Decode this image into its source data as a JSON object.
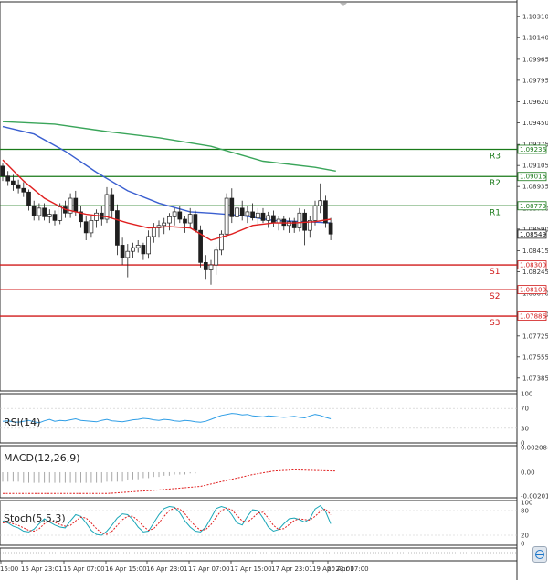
{
  "chart_data": {
    "type": "candlestick",
    "symbol_pair": "EURUSD",
    "price_axis": {
      "ticks": [
        "1.10310",
        "1.10140",
        "1.09965",
        "1.09795",
        "1.09620",
        "1.09450",
        "1.09275",
        "1.09105",
        "1.08935",
        "1.08760",
        "1.08590",
        "1.08415",
        "1.08245",
        "1.08070",
        "1.07900",
        "1.07725",
        "1.07555",
        "1.07385"
      ],
      "range": [
        1.0728,
        1.1043
      ]
    },
    "time_axis": {
      "labels": [
        "15:00",
        "15 Apr 23:01",
        "16 Apr 07:00",
        "16 Apr 15:00",
        "16 Apr 23:01",
        "17 Apr 07:00",
        "17 Apr 15:00",
        "17 Apr 23:01",
        "19 Apr 23:01",
        "20 Apr 07:00"
      ]
    },
    "current_price": "1.08549",
    "levels": [
      {
        "name": "R3",
        "value": 1.09236,
        "tag": "1.09236",
        "color": "#1a7a1a"
      },
      {
        "name": "R2",
        "value": 1.09016,
        "tag": "1.09016",
        "color": "#1a7a1a"
      },
      {
        "name": "R1",
        "value": 1.08779,
        "tag": "1.08779",
        "color": "#1a7a1a"
      },
      {
        "name": "S1",
        "value": 1.083,
        "tag": "1.08300",
        "color": "#d11a1a"
      },
      {
        "name": "S2",
        "value": 1.081,
        "tag": "1.08100",
        "color": "#d11a1a"
      },
      {
        "name": "S3",
        "value": 1.07886,
        "tag": "1.07886",
        "color": "#d11a1a"
      }
    ],
    "candles": [
      [
        1.091,
        1.0912,
        1.0898,
        1.0902
      ],
      [
        1.0902,
        1.0906,
        1.0894,
        1.0898
      ],
      [
        1.0898,
        1.0903,
        1.089,
        1.0895
      ],
      [
        1.0895,
        1.0899,
        1.0888,
        1.0892
      ],
      [
        1.0892,
        1.0897,
        1.0885,
        1.0889
      ],
      [
        1.0889,
        1.0891,
        1.0874,
        1.0878
      ],
      [
        1.0878,
        1.0882,
        1.0866,
        1.087
      ],
      [
        1.087,
        1.088,
        1.0866,
        1.0876
      ],
      [
        1.0876,
        1.088,
        1.0866,
        1.0869
      ],
      [
        1.0869,
        1.0875,
        1.0864,
        1.0871
      ],
      [
        1.0871,
        1.0874,
        1.0862,
        1.0866
      ],
      [
        1.0866,
        1.088,
        1.0863,
        1.0877
      ],
      [
        1.0877,
        1.0882,
        1.0868,
        1.0872
      ],
      [
        1.0872,
        1.0888,
        1.0868,
        1.0884
      ],
      [
        1.0884,
        1.089,
        1.087,
        1.0873
      ],
      [
        1.0873,
        1.0878,
        1.086,
        1.0865
      ],
      [
        1.0865,
        1.087,
        1.085,
        1.0856
      ],
      [
        1.0856,
        1.087,
        1.0852,
        1.0866
      ],
      [
        1.0866,
        1.0875,
        1.086,
        1.0872
      ],
      [
        1.0872,
        1.0878,
        1.0862,
        1.0867
      ],
      [
        1.0867,
        1.0893,
        1.0864,
        1.0887
      ],
      [
        1.0887,
        1.0892,
        1.0868,
        1.0874
      ],
      [
        1.0874,
        1.0879,
        1.0838,
        1.0846
      ],
      [
        1.0846,
        1.0852,
        1.083,
        1.0836
      ],
      [
        1.0836,
        1.0847,
        1.082,
        1.0841
      ],
      [
        1.0841,
        1.0848,
        1.0836,
        1.0844
      ],
      [
        1.0844,
        1.085,
        1.084,
        1.0846
      ],
      [
        1.0846,
        1.0848,
        1.0834,
        1.0839
      ],
      [
        1.0839,
        1.0858,
        1.0835,
        1.0853
      ],
      [
        1.0853,
        1.0864,
        1.0848,
        1.086
      ],
      [
        1.086,
        1.0866,
        1.0852,
        1.0862
      ],
      [
        1.0862,
        1.0868,
        1.0855,
        1.0864
      ],
      [
        1.0864,
        1.0872,
        1.0858,
        1.0869
      ],
      [
        1.0869,
        1.0876,
        1.0862,
        1.0873
      ],
      [
        1.0873,
        1.0878,
        1.0864,
        1.0867
      ],
      [
        1.0867,
        1.087,
        1.0856,
        1.0864
      ],
      [
        1.0864,
        1.0876,
        1.086,
        1.0871
      ],
      [
        1.0871,
        1.0874,
        1.0856,
        1.0858
      ],
      [
        1.0858,
        1.0862,
        1.0828,
        1.0832
      ],
      [
        1.0832,
        1.0838,
        1.0818,
        1.0826
      ],
      [
        1.0826,
        1.0834,
        1.0814,
        1.083
      ],
      [
        1.083,
        1.0845,
        1.0822,
        1.0842
      ],
      [
        1.0842,
        1.0858,
        1.0838,
        1.0855
      ],
      [
        1.0855,
        1.0888,
        1.0852,
        1.0884
      ],
      [
        1.0884,
        1.0892,
        1.0864,
        1.0869
      ],
      [
        1.0869,
        1.089,
        1.0862,
        1.0876
      ],
      [
        1.0876,
        1.0882,
        1.0866,
        1.087
      ],
      [
        1.087,
        1.0878,
        1.0864,
        1.0873
      ],
      [
        1.0873,
        1.088,
        1.0866,
        1.0868
      ],
      [
        1.0868,
        1.0876,
        1.0863,
        1.0872
      ],
      [
        1.0872,
        1.0876,
        1.0864,
        1.0866
      ],
      [
        1.0866,
        1.0873,
        1.086,
        1.087
      ],
      [
        1.087,
        1.0874,
        1.0861,
        1.0864
      ],
      [
        1.0864,
        1.087,
        1.0858,
        1.0867
      ],
      [
        1.0867,
        1.087,
        1.0858,
        1.0862
      ],
      [
        1.0862,
        1.0868,
        1.0856,
        1.0865
      ],
      [
        1.0865,
        1.0868,
        1.0856,
        1.086
      ],
      [
        1.086,
        1.0876,
        1.0857,
        1.0872
      ],
      [
        1.0872,
        1.0875,
        1.0846,
        1.0858
      ],
      [
        1.0858,
        1.087,
        1.0852,
        1.0866
      ],
      [
        1.0866,
        1.0882,
        1.0862,
        1.0878
      ],
      [
        1.0878,
        1.0896,
        1.0872,
        1.0882
      ],
      [
        1.0882,
        1.0886,
        1.086,
        1.0864
      ],
      [
        1.0864,
        1.0868,
        1.085,
        1.0855
      ]
    ],
    "ma_slow_green": [
      [
        0,
        1.0946
      ],
      [
        10,
        1.0944
      ],
      [
        20,
        1.0938
      ],
      [
        30,
        1.0933
      ],
      [
        40,
        1.0926
      ],
      [
        50,
        1.0914
      ],
      [
        60,
        1.0909
      ],
      [
        64,
        1.0906
      ]
    ],
    "ma_mid_blue": [
      [
        0,
        1.0942
      ],
      [
        6,
        1.0936
      ],
      [
        12,
        1.0922
      ],
      [
        18,
        1.0905
      ],
      [
        24,
        1.089
      ],
      [
        30,
        1.088
      ],
      [
        36,
        1.0873
      ],
      [
        40,
        1.0872
      ],
      [
        46,
        1.087
      ],
      [
        52,
        1.0866
      ],
      [
        58,
        1.0865
      ],
      [
        63,
        1.0864
      ]
    ],
    "ma_fast_red": [
      [
        0,
        1.0915
      ],
      [
        4,
        1.0898
      ],
      [
        8,
        1.0884
      ],
      [
        12,
        1.0875
      ],
      [
        16,
        1.0871
      ],
      [
        20,
        1.0869
      ],
      [
        24,
        1.0864
      ],
      [
        28,
        1.086
      ],
      [
        32,
        1.0861
      ],
      [
        36,
        1.086
      ],
      [
        40,
        1.085
      ],
      [
        44,
        1.0855
      ],
      [
        48,
        1.0862
      ],
      [
        52,
        1.0864
      ],
      [
        56,
        1.0864
      ],
      [
        60,
        1.0865
      ],
      [
        63,
        1.0867
      ]
    ],
    "panels": {
      "rsi": {
        "label": "RSI(14)",
        "ticks": [
          "100",
          "70",
          "30",
          "0"
        ],
        "values": [
          44,
          45,
          43,
          42,
          44,
          46,
          43,
          41,
          45,
          48,
          44,
          46,
          45,
          47,
          49,
          46,
          45,
          44,
          43,
          46,
          48,
          45,
          44,
          43,
          45,
          47,
          48,
          50,
          49,
          47,
          46,
          48,
          47,
          45,
          44,
          46,
          45,
          43,
          42,
          44,
          48,
          52,
          56,
          58,
          60,
          59,
          57,
          58,
          55,
          54,
          53,
          55,
          54,
          53,
          52,
          53,
          54,
          52,
          51,
          55,
          58,
          56,
          52,
          49
        ]
      },
      "macd": {
        "label": "MACD(12,26,9)",
        "ticks": [
          "0.002084",
          "0.00",
          "-0.002012"
        ],
        "histogram": [
          -0.0008,
          -0.0008,
          -0.0008,
          -0.0008,
          -0.0009,
          -0.0009,
          -0.0009,
          -0.0009,
          -0.0009,
          -0.0009,
          -0.0009,
          -0.0009,
          -0.0009,
          -0.0009,
          -0.0009,
          -0.0009,
          -0.0009,
          -0.0009,
          -0.0009,
          -0.0009,
          -0.0008,
          -0.0008,
          -0.0008,
          -0.0008,
          -0.0007,
          -0.0006,
          -0.0006,
          -0.0005,
          -0.0005,
          -0.0004,
          -0.0004,
          -0.0003,
          -0.0003,
          -0.0002,
          -0.0002,
          -0.0002,
          -0.0001,
          -0.0001
        ],
        "signal": [
          [
            0,
            -0.0018
          ],
          [
            20,
            -0.0018
          ],
          [
            30,
            -0.0015
          ],
          [
            38,
            -0.0012
          ],
          [
            44,
            -0.0006
          ],
          [
            48,
            -0.0002
          ],
          [
            52,
            0.0001
          ],
          [
            56,
            0.0002
          ],
          [
            64,
            0.0001
          ]
        ]
      },
      "stoch": {
        "label": "Stoch(5,5,3)",
        "ticks": [
          "100",
          "80",
          "20",
          "0"
        ],
        "k": [
          55,
          50,
          42,
          38,
          30,
          28,
          35,
          48,
          60,
          52,
          45,
          40,
          38,
          55,
          70,
          66,
          50,
          32,
          22,
          20,
          30,
          45,
          62,
          72,
          70,
          58,
          40,
          28,
          30,
          50,
          70,
          85,
          90,
          88,
          75,
          55,
          40,
          30,
          28,
          40,
          62,
          85,
          90,
          86,
          70,
          50,
          45,
          66,
          82,
          80,
          62,
          40,
          30,
          34,
          48,
          60,
          62,
          58,
          52,
          60,
          84,
          92,
          78,
          48
        ],
        "d": [
          50,
          52,
          48,
          44,
          38,
          32,
          30,
          36,
          48,
          55,
          52,
          46,
          42,
          44,
          55,
          64,
          62,
          50,
          36,
          26,
          22,
          30,
          44,
          58,
          66,
          66,
          56,
          42,
          32,
          36,
          50,
          66,
          80,
          86,
          84,
          72,
          56,
          42,
          32,
          34,
          46,
          64,
          80,
          86,
          82,
          68,
          55,
          52,
          62,
          74,
          76,
          62,
          44,
          34,
          36,
          46,
          56,
          60,
          58,
          57,
          66,
          78,
          84,
          70
        ]
      }
    }
  }
}
